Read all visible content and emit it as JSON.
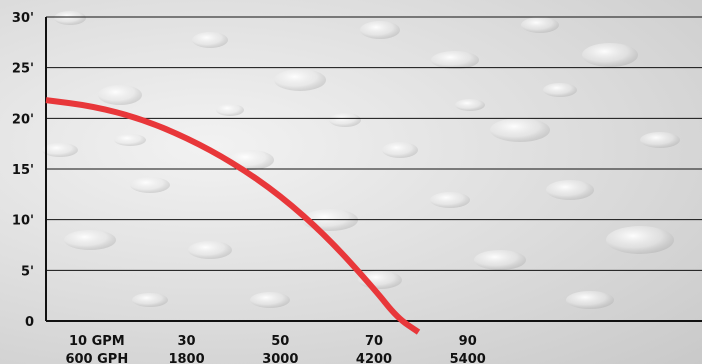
{
  "chart_data": {
    "type": "line",
    "title": "",
    "xlabel": "",
    "ylabel": "",
    "y_ticks": [
      "0",
      "5'",
      "10'",
      "15'",
      "20'",
      "25'",
      "30'"
    ],
    "y_tick_values": [
      0,
      5,
      10,
      15,
      20,
      25,
      30
    ],
    "x_ticks_gpm": [
      "10 GPM",
      "30",
      "50",
      "70",
      "90"
    ],
    "x_ticks_gph": [
      "600 GPH",
      "1800",
      "3000",
      "4200",
      "5400"
    ],
    "x_tick_values": [
      10,
      30,
      50,
      70,
      90
    ],
    "xlim": [
      0,
      140
    ],
    "ylim": [
      0,
      30
    ],
    "grid": true,
    "series": [
      {
        "name": "",
        "color": "#e8373a",
        "x": [
          0,
          10,
          20,
          30,
          40,
          50,
          60,
          70,
          75,
          79.5
        ],
        "y": [
          21.8,
          21.2,
          20.0,
          18.1,
          15.6,
          12.4,
          8.3,
          3.2,
          0.3,
          -1.1
        ]
      }
    ]
  },
  "colors": {
    "axis": "#111111",
    "grid": "#111111",
    "curve": "#e8373a"
  }
}
